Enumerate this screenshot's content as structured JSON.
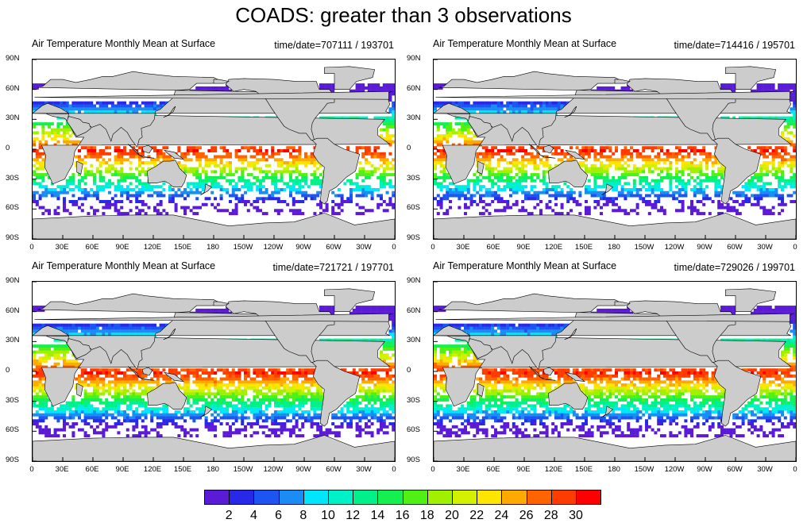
{
  "title": "COADS: greater than 3 observations",
  "panels": [
    {
      "left_title": "Air Temperature Monthly Mean at Surface",
      "right_title": "time/date=707111 / 193701",
      "variant": 0
    },
    {
      "left_title": "Air Temperature Monthly Mean at Surface",
      "right_title": "time/date=714416 / 195701",
      "variant": 1
    },
    {
      "left_title": "Air Temperature Monthly Mean at Surface",
      "right_title": "time/date=721721 / 197701",
      "variant": 2
    },
    {
      "left_title": "Air Temperature Monthly Mean at Surface",
      "right_title": "time/date=729026 / 199701",
      "variant": 3
    }
  ],
  "lat_ticks": [
    "90N",
    "60N",
    "30N",
    "0",
    "30S",
    "60S",
    "90S"
  ],
  "lon_ticks": [
    "0",
    "30E",
    "60E",
    "90E",
    "120E",
    "150E",
    "180",
    "150W",
    "120W",
    "90W",
    "60W",
    "30W",
    "0"
  ],
  "colorbar": {
    "labels": [
      "2",
      "4",
      "6",
      "8",
      "10",
      "12",
      "14",
      "16",
      "18",
      "20",
      "22",
      "24",
      "26",
      "28",
      "30"
    ],
    "colors": [
      "#5a1ad6",
      "#2828e8",
      "#1c55f0",
      "#1c8cf5",
      "#00e6ff",
      "#00f0c8",
      "#00f08c",
      "#14f050",
      "#50f014",
      "#a0f000",
      "#d2f000",
      "#ffe600",
      "#ffaa00",
      "#ff6400",
      "#ff3c00",
      "#ff0000"
    ]
  },
  "land_color": "#cccccc"
}
